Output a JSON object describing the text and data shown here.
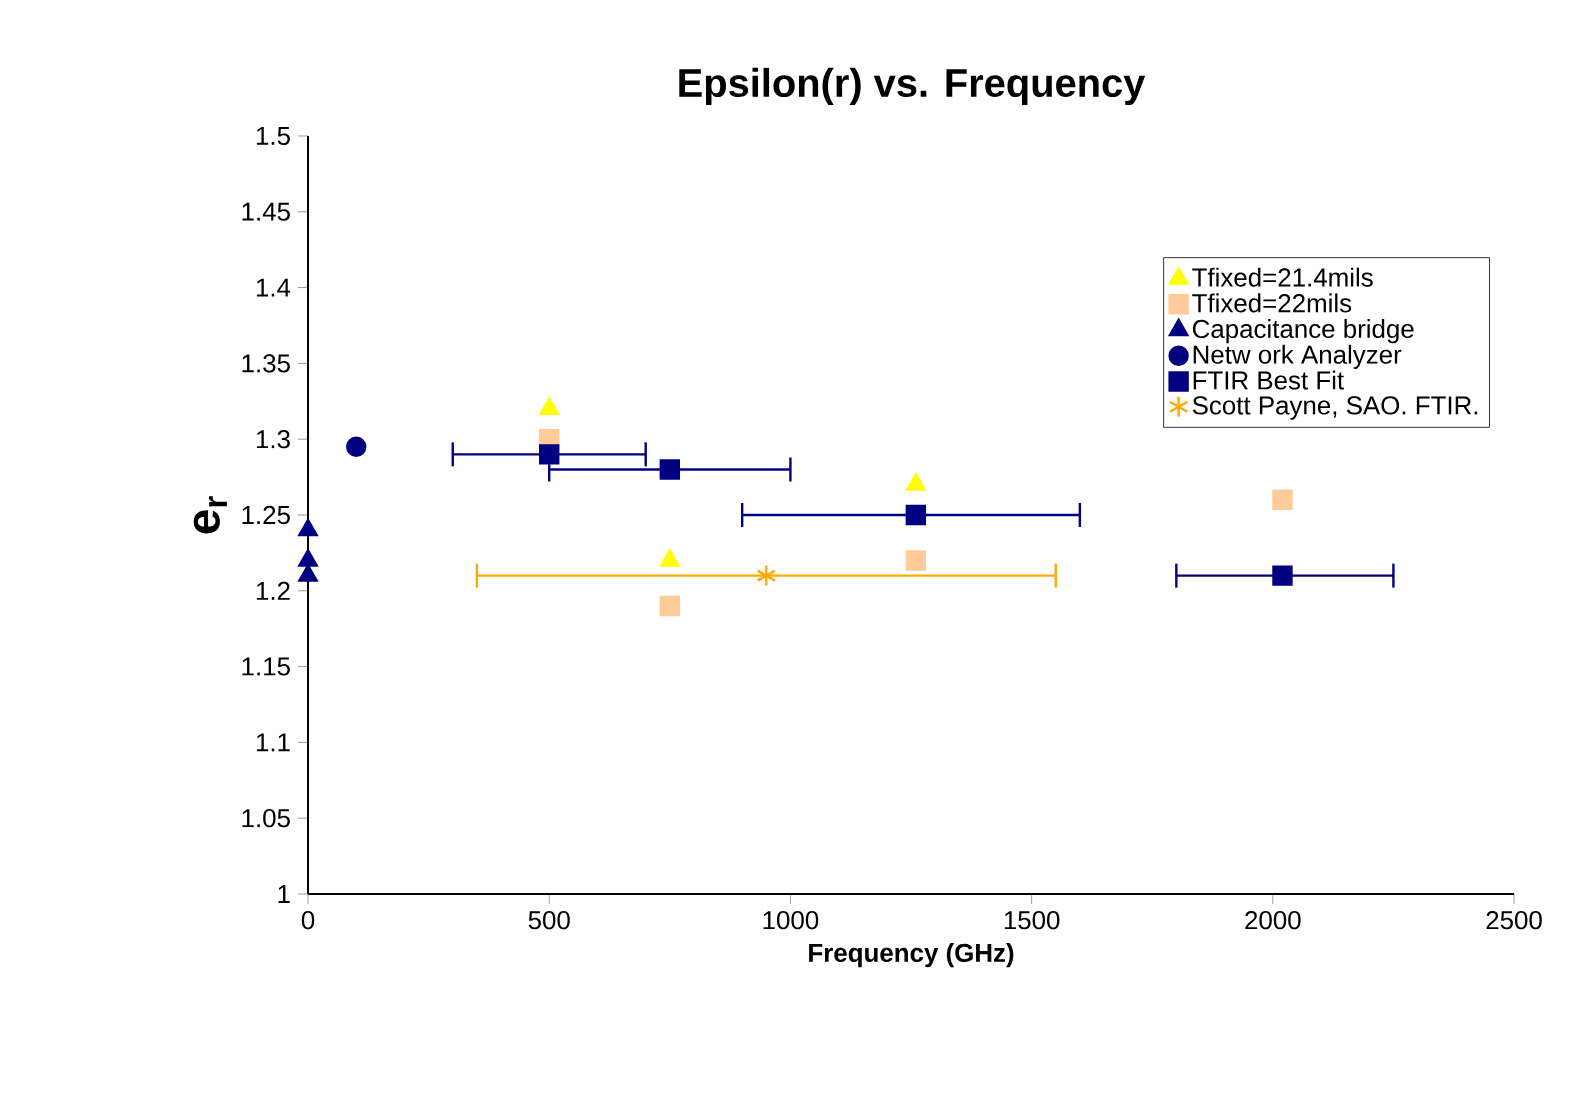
{
  "chart_data": {
    "type": "scatter",
    "title": "Epsilon(r) vs. Frequency",
    "xlabel": "Frequency (GHz)",
    "ylabel": "e$_{r}$",
    "xlim": [
      0,
      2500
    ],
    "xticks": [
      0,
      500,
      1000,
      1500,
      2000,
      2500
    ],
    "ylim": [
      1,
      1.5
    ],
    "yticks": [
      1,
      1.05,
      1.1,
      1.15,
      1.2,
      1.25,
      1.3,
      1.35,
      1.4,
      1.45,
      1.5
    ],
    "grid": false,
    "legend": "top right",
    "series": [
      {
        "name": "Tfixed=21.4mils",
        "color": "#ffff00",
        "marker": "triangle",
        "x": [
          500,
          750,
          1260
        ],
        "values": [
          1.32,
          1.22,
          1.27
        ]
      },
      {
        "name": "Tfixed=22mils",
        "color": "#ffcc99",
        "marker": "square",
        "x": [
          500,
          750,
          1260,
          2020
        ],
        "values": [
          1.3,
          1.19,
          1.22,
          1.26
        ]
      },
      {
        "name": "Capacitance bridge",
        "color": "#000080",
        "marker": "triangle",
        "x": [
          0,
          0,
          0
        ],
        "values": [
          1.21,
          1.22,
          1.24
        ]
      },
      {
        "name": "Netw ork Analyzer",
        "color": "#000080",
        "marker": "circle",
        "x": [
          100
        ],
        "values": [
          1.295
        ]
      },
      {
        "name": "FTIR Best Fit",
        "color": "#000080",
        "marker": "square",
        "x": [
          500,
          750,
          1260,
          2020
        ],
        "values": [
          1.29,
          1.28,
          1.25,
          1.21
        ],
        "xerrors": [
          [
            300,
            700
          ],
          [
            500,
            1000
          ],
          [
            900,
            1600
          ],
          [
            1800,
            2250
          ]
        ]
      },
      {
        "name": "Scott Payne, SAO.  FTIR.",
        "color": "#ffaa00",
        "marker": "cross",
        "x": [
          950
        ],
        "values": [
          1.21
        ],
        "xerrors": [
          [
            350,
            1550
          ]
        ]
      }
    ]
  }
}
